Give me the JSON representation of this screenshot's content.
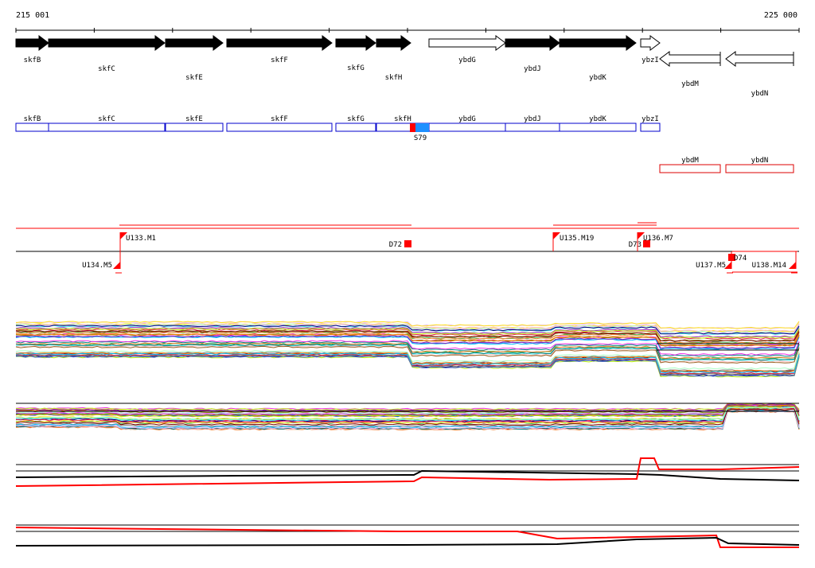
{
  "coords": {
    "start": "215 001",
    "end": "225 000"
  },
  "colors": {
    "forward_gene": "#000000",
    "reverse_gene": "#ffffff",
    "gene_outline": "#000000",
    "operon_forward": "#0000cc",
    "operon_reverse": "#dd0000",
    "site_marker": "#ff0000",
    "site_highlight": "#1e90ff",
    "promoter": "#ff0000",
    "axis": "#000000"
  },
  "genes": [
    {
      "name": "skfB",
      "strand": "+"
    },
    {
      "name": "skfC",
      "strand": "+"
    },
    {
      "name": "skfE",
      "strand": "+"
    },
    {
      "name": "skfF",
      "strand": "+"
    },
    {
      "name": "skfG",
      "strand": "+"
    },
    {
      "name": "skfH",
      "strand": "+"
    },
    {
      "name": "ybdG",
      "strand": "+"
    },
    {
      "name": "ybdJ",
      "strand": "+"
    },
    {
      "name": "ybdK",
      "strand": "+"
    },
    {
      "name": "ybzI",
      "strand": "+"
    },
    {
      "name": "ybdM",
      "strand": "-"
    },
    {
      "name": "ybdN",
      "strand": "-"
    }
  ],
  "operon_boxes": [
    {
      "label": "skfB"
    },
    {
      "label": "skfC"
    },
    {
      "label": "skfE"
    },
    {
      "label": "skfF"
    },
    {
      "label": "skfG"
    },
    {
      "label": "skfH"
    },
    {
      "label": "ybdG"
    },
    {
      "label": "ybdJ"
    },
    {
      "label": "ybdK"
    },
    {
      "label": "ybzI"
    },
    {
      "label": "ybdM"
    },
    {
      "label": "ybdN"
    }
  ],
  "site_label": "S79",
  "promoters": [
    {
      "label": "U133.M1"
    },
    {
      "label": "D72"
    },
    {
      "label": "U135.M19"
    },
    {
      "label": "D73"
    },
    {
      "label": "U136.M7"
    },
    {
      "label": "U134.M5"
    },
    {
      "label": "U137.M5"
    },
    {
      "label": "D74"
    },
    {
      "label": "U138.M14"
    }
  ],
  "tracks": [
    {
      "name": "expression-panel-forward"
    },
    {
      "name": "expression-panel-reverse"
    },
    {
      "name": "summary-panel-forward"
    },
    {
      "name": "summary-panel-reverse"
    }
  ]
}
